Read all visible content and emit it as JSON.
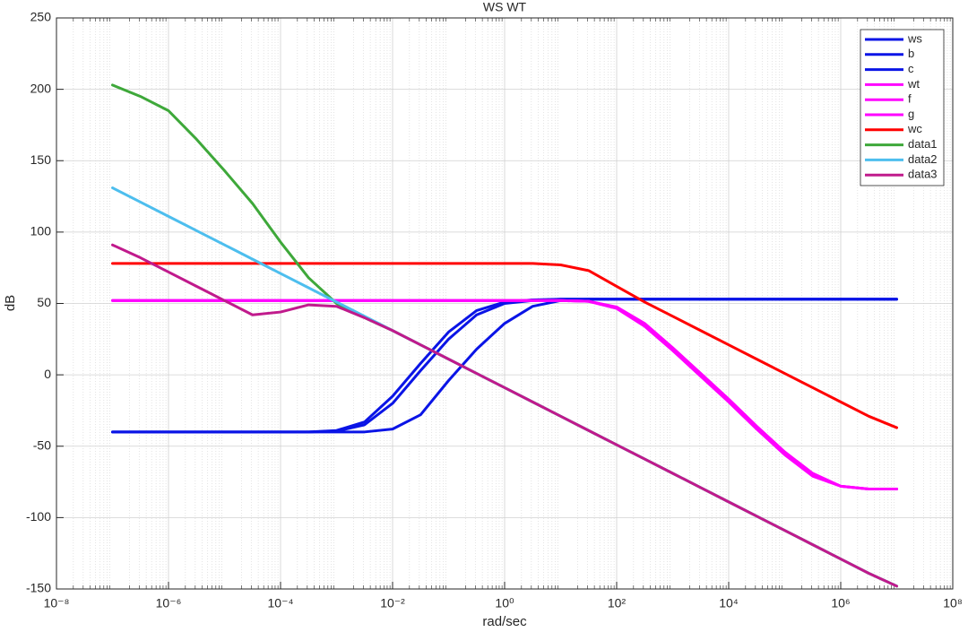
{
  "chart_data": {
    "type": "line",
    "title": "WS WT",
    "xlabel": "rad/sec",
    "ylabel": "dB",
    "x_scale": "log",
    "grid": true,
    "minor_grid": true,
    "legend_position": "top-right",
    "x": [
      1e-07,
      3.162e-07,
      1e-06,
      3.162e-06,
      1e-05,
      3.162e-05,
      0.0001,
      0.0003162,
      0.001,
      0.003162,
      0.01,
      0.03162,
      0.1,
      0.3162,
      1,
      3.162,
      10,
      31.62,
      100,
      316.2,
      1000,
      3162,
      10000,
      31620,
      100000,
      316200,
      1000000,
      3162000,
      10000000
    ],
    "xlim": [
      1e-08,
      100000000.0
    ],
    "xticks": [
      {
        "value": 1e-08,
        "label": "10⁻⁸"
      },
      {
        "value": 1e-06,
        "label": "10⁻⁶"
      },
      {
        "value": 0.0001,
        "label": "10⁻⁴"
      },
      {
        "value": 0.01,
        "label": "10⁻²"
      },
      {
        "value": 1,
        "label": "10⁰"
      },
      {
        "value": 100,
        "label": "10²"
      },
      {
        "value": 10000,
        "label": "10⁴"
      },
      {
        "value": 1000000,
        "label": "10⁶"
      },
      {
        "value": 100000000,
        "label": "10⁸"
      }
    ],
    "ylim": [
      -150,
      250
    ],
    "yticks": [
      -150,
      -100,
      -50,
      0,
      50,
      100,
      150,
      200,
      250
    ],
    "series": [
      {
        "name": "ws",
        "color": "#0a14e6",
        "values": [
          -40,
          -40,
          -40,
          -40,
          -40,
          -40,
          -40,
          -40,
          -39,
          -33,
          -15,
          8,
          30,
          45,
          51,
          52.5,
          53,
          53,
          53,
          53,
          53,
          53,
          53,
          53,
          53,
          53,
          53,
          53,
          53
        ]
      },
      {
        "name": "b",
        "color": "#0a14e6",
        "values": [
          -40,
          -40,
          -40,
          -40,
          -40,
          -40,
          -40,
          -40,
          -39.5,
          -35,
          -20,
          3,
          25,
          42,
          50,
          52,
          53,
          53,
          53,
          53,
          53,
          53,
          53,
          53,
          53,
          53,
          53,
          53,
          53
        ]
      },
      {
        "name": "c",
        "color": "#0a14e6",
        "values": [
          -40,
          -40,
          -40,
          -40,
          -40,
          -40,
          -40,
          -40,
          -40,
          -40,
          -38,
          -28,
          -4,
          18,
          36,
          48,
          52,
          53,
          53,
          53,
          53,
          53,
          53,
          53,
          53,
          53,
          53,
          53,
          53
        ]
      },
      {
        "name": "wt",
        "color": "#ff00ff",
        "values": [
          52,
          52,
          52,
          52,
          52,
          52,
          52,
          52,
          52,
          52,
          52,
          52,
          52,
          52,
          52,
          52,
          52,
          51.5,
          47,
          35,
          18,
          0,
          -18,
          -37,
          -55,
          -70,
          -78,
          -80,
          -80
        ]
      },
      {
        "name": "f",
        "color": "#ff00ff",
        "values": [
          52,
          52,
          52,
          52,
          52,
          52,
          52,
          52,
          52,
          52,
          52,
          52,
          52,
          52,
          52,
          52,
          52,
          51.5,
          46.5,
          34,
          17,
          -1,
          -19,
          -38,
          -56,
          -71,
          -78,
          -80,
          -80
        ]
      },
      {
        "name": "g",
        "color": "#ff00ff",
        "values": [
          52,
          52,
          52,
          52,
          52,
          52,
          52,
          52,
          52,
          52,
          52,
          52,
          52,
          52,
          52,
          52,
          52,
          51.5,
          47.5,
          36,
          19,
          1,
          -17,
          -36,
          -54,
          -69,
          -78,
          -80,
          -80
        ]
      },
      {
        "name": "wc",
        "color": "#ff0000",
        "values": [
          78,
          78,
          78,
          78,
          78,
          78,
          78,
          78,
          78,
          78,
          78,
          78,
          78,
          78,
          78,
          78,
          77,
          73,
          62,
          51,
          41,
          31,
          21,
          11,
          1,
          -9,
          -19,
          -29,
          -37
        ]
      },
      {
        "name": "data1",
        "color": "#3ea83a",
        "values": [
          203,
          195,
          185,
          165,
          143,
          120,
          93,
          68,
          50,
          40,
          31,
          21,
          11,
          1,
          -9,
          -19,
          -29,
          -39,
          -49,
          -59,
          -69,
          -79,
          -89,
          -99,
          -109,
          -119,
          -129,
          -139,
          -148
        ]
      },
      {
        "name": "data2",
        "color": "#4dbeee",
        "values": [
          131,
          121,
          111,
          101,
          91,
          81,
          71,
          61,
          51,
          41,
          31,
          21,
          11,
          1,
          -9,
          -19,
          -29,
          -39,
          -49,
          -59,
          -69,
          -79,
          -89,
          -99,
          -109,
          -119,
          -129,
          -139,
          -148
        ]
      },
      {
        "name": "data3",
        "color": "#c01a8c",
        "values": [
          91,
          82,
          72,
          62,
          52,
          42,
          44,
          49,
          48,
          40,
          31,
          21,
          11,
          1,
          -9,
          -19,
          -29,
          -39,
          -49,
          -59,
          -69,
          -79,
          -89,
          -99,
          -109,
          -119,
          -129,
          -139,
          -148
        ]
      }
    ]
  }
}
